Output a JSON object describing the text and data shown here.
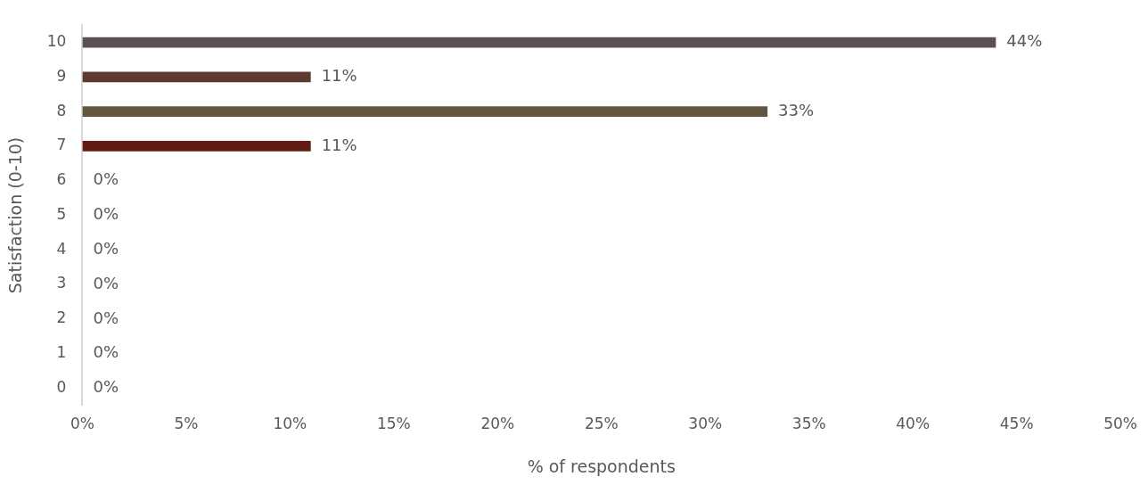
{
  "chart_data": {
    "type": "bar",
    "orientation": "horizontal",
    "xlabel": "% of respondents",
    "ylabel": "Satisfaction (0-10)",
    "categories": [
      "10",
      "9",
      "8",
      "7",
      "6",
      "5",
      "4",
      "3",
      "2",
      "1",
      "0"
    ],
    "values": [
      44,
      11,
      33,
      11,
      0,
      0,
      0,
      0,
      0,
      0,
      0
    ],
    "value_labels": [
      "44%",
      "11%",
      "33%",
      "11%",
      "0%",
      "0%",
      "0%",
      "0%",
      "0%",
      "0%",
      "0%"
    ],
    "colors": [
      "#5b5052",
      "#5c3a30",
      "#635640",
      "#611c16",
      "#7f7f7f",
      "#7f7f7f",
      "#7f7f7f",
      "#7f7f7f",
      "#7f7f7f",
      "#7f7f7f",
      "#7f7f7f"
    ],
    "xlim": [
      0,
      50
    ],
    "xticks": [
      {
        "value": 0,
        "label": "0%"
      },
      {
        "value": 5,
        "label": "5%"
      },
      {
        "value": 10,
        "label": "10%"
      },
      {
        "value": 15,
        "label": "15%"
      },
      {
        "value": 20,
        "label": "20%"
      },
      {
        "value": 25,
        "label": "25%"
      },
      {
        "value": 30,
        "label": "30%"
      },
      {
        "value": 35,
        "label": "35%"
      },
      {
        "value": 40,
        "label": "40%"
      },
      {
        "value": 45,
        "label": "45%"
      },
      {
        "value": 50,
        "label": "50%"
      }
    ],
    "grid": false,
    "legend": false
  }
}
